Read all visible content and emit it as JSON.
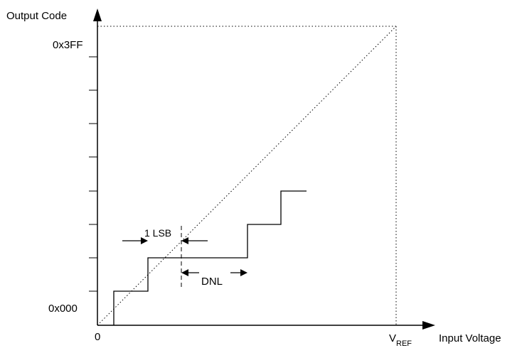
{
  "y_axis": {
    "label": "Output Code",
    "top_code": "0x3FF",
    "bottom_code": "0x000"
  },
  "x_axis": {
    "label": "Input Voltage",
    "origin": "0",
    "ref_main": "V",
    "ref_sub": "REF"
  },
  "annotations": {
    "lsb": "1 LSB",
    "dnl": "DNL"
  },
  "colors": {
    "ink": "#000000"
  }
}
